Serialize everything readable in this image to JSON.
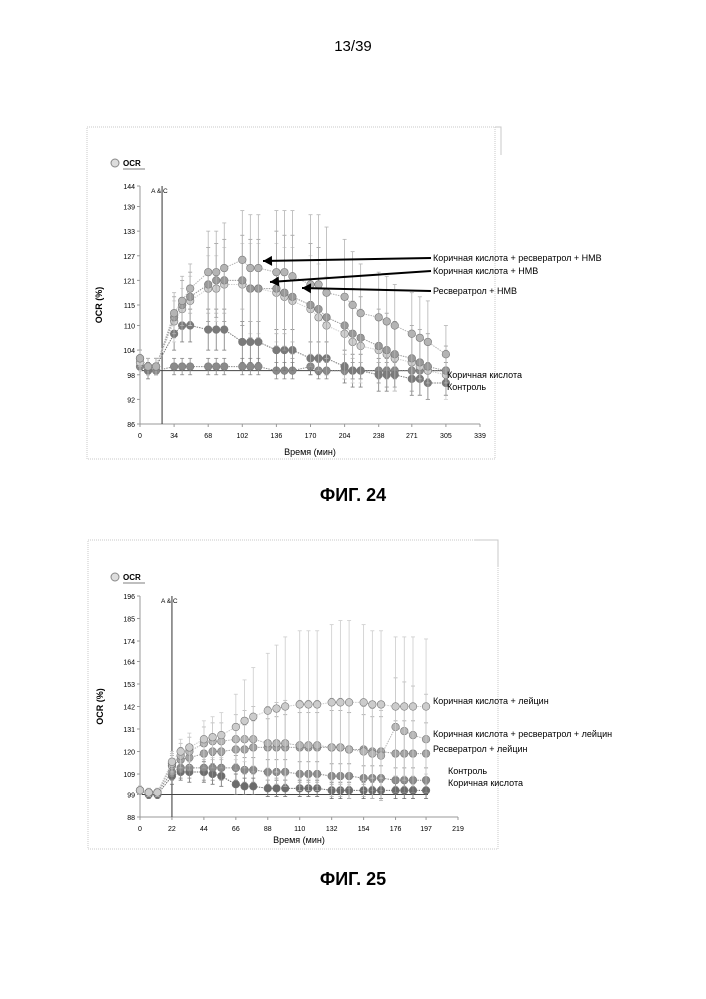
{
  "page_number": "13/39",
  "chart_data": [
    {
      "type": "line",
      "caption": "ФИГ. 24",
      "legend_label": "OCR",
      "ylabel": "OCR (%)",
      "xlabel": "Время (мин)",
      "injection_label": "A & C",
      "injection_x": 22,
      "baseline": 99,
      "xlim": [
        0,
        339
      ],
      "ylim": [
        86,
        144
      ],
      "x_ticks": [
        0,
        34,
        68,
        102,
        136,
        170,
        204,
        238,
        271,
        305,
        339
      ],
      "y_ticks": [
        86,
        92,
        98,
        104,
        110,
        115,
        121,
        127,
        133,
        139,
        144
      ],
      "x": [
        0,
        8,
        16,
        34,
        42,
        50,
        68,
        76,
        84,
        102,
        110,
        118,
        136,
        144,
        152,
        170,
        178,
        186,
        204,
        212,
        220,
        238,
        246,
        254,
        271,
        279,
        287,
        305
      ],
      "series": [
        {
          "name": "Коричная кислота + ресвератрол + HMB",
          "color": "#b4b4b4",
          "values": [
            102,
            100,
            100,
            113,
            116,
            119,
            123,
            123,
            124,
            126,
            124,
            124,
            123,
            123,
            122,
            120,
            120,
            118,
            117,
            115,
            113,
            112,
            111,
            110,
            108,
            107,
            106,
            103
          ],
          "err": [
            2,
            2,
            2,
            5,
            6,
            6,
            10,
            10,
            11,
            12,
            13,
            13,
            15,
            15,
            16,
            17,
            17,
            16,
            14,
            13,
            12,
            11,
            11,
            10,
            10,
            10,
            10,
            7
          ]
        },
        {
          "name": "Коричная кислота + HMB",
          "color": "#999999",
          "values": [
            102,
            100,
            100,
            112,
            115,
            117,
            120,
            121,
            121,
            121,
            119,
            119,
            119,
            118,
            117,
            115,
            114,
            112,
            110,
            108,
            107,
            105,
            104,
            103,
            102,
            101,
            100,
            99
          ],
          "err": [
            2,
            2,
            2,
            5,
            6,
            6,
            9,
            9,
            10,
            11,
            12,
            12,
            14,
            14,
            15,
            15,
            15,
            14,
            12,
            11,
            10,
            9,
            9,
            8,
            8,
            8,
            8,
            6
          ]
        },
        {
          "name": "Ресвератрол + HMB",
          "color": "#cfcfcf",
          "values": [
            101,
            100,
            100,
            111,
            114,
            116,
            119,
            119,
            120,
            120,
            119,
            119,
            118,
            117,
            116,
            114,
            112,
            110,
            108,
            106,
            105,
            104,
            103,
            102,
            101,
            100,
            99,
            98
          ],
          "err": [
            2,
            2,
            2,
            5,
            5,
            6,
            8,
            8,
            9,
            10,
            11,
            11,
            12,
            12,
            13,
            13,
            13,
            12,
            11,
            10,
            9,
            8,
            8,
            8,
            7,
            7,
            7,
            6
          ]
        },
        {
          "name": "Коричная кислота",
          "color": "#7a7a7a",
          "values": [
            102,
            99,
            100,
            108,
            110,
            110,
            109,
            109,
            109,
            106,
            106,
            106,
            104,
            104,
            104,
            102,
            102,
            102,
            100,
            99,
            99,
            98,
            98,
            98,
            97,
            97,
            96,
            96
          ],
          "err": [
            2,
            2,
            2,
            4,
            4,
            4,
            5,
            5,
            5,
            5,
            5,
            5,
            5,
            5,
            5,
            4,
            4,
            4,
            4,
            4,
            4,
            4,
            4,
            4,
            4,
            4,
            4,
            3
          ]
        },
        {
          "name": "Контроль",
          "color": "#8a8a8a",
          "values": [
            100,
            99,
            99,
            100,
            100,
            100,
            100,
            100,
            100,
            100,
            100,
            100,
            99,
            99,
            99,
            100,
            99,
            99,
            99,
            99,
            99,
            99,
            99,
            99,
            99,
            99,
            99,
            99
          ],
          "err": [
            1,
            1,
            1,
            2,
            2,
            2,
            2,
            2,
            2,
            2,
            2,
            2,
            2,
            2,
            2,
            2,
            2,
            2,
            2,
            2,
            2,
            2,
            2,
            2,
            2,
            2,
            2,
            2
          ]
        }
      ]
    },
    {
      "type": "line",
      "caption": "ФИГ. 25",
      "legend_label": "OCR",
      "ylabel": "OCR (%)",
      "xlabel": "Время (мин)",
      "injection_label": "A & C",
      "injection_x": 22,
      "baseline": 99,
      "xlim": [
        0,
        219
      ],
      "ylim": [
        88,
        196
      ],
      "x_ticks": [
        0,
        22,
        44,
        66,
        88,
        110,
        132,
        154,
        176,
        197,
        219
      ],
      "y_ticks": [
        88,
        99,
        109,
        120,
        131,
        142,
        153,
        164,
        174,
        185,
        196
      ],
      "x": [
        0,
        6,
        12,
        22,
        28,
        34,
        44,
        50,
        56,
        66,
        72,
        78,
        88,
        94,
        100,
        110,
        116,
        122,
        132,
        138,
        144,
        154,
        160,
        166,
        176,
        182,
        188,
        197
      ],
      "series": [
        {
          "name": "Коричная кислота + лейцин",
          "color": "#cccccc",
          "values": [
            101,
            100,
            100,
            115,
            120,
            122,
            126,
            127,
            128,
            132,
            135,
            137,
            140,
            141,
            142,
            143,
            143,
            143,
            144,
            144,
            144,
            144,
            143,
            143,
            142,
            142,
            142,
            142
          ],
          "err": [
            2,
            2,
            2,
            5,
            6,
            7,
            9,
            10,
            11,
            16,
            20,
            24,
            28,
            31,
            34,
            36,
            36,
            36,
            38,
            40,
            40,
            38,
            36,
            36,
            34,
            34,
            34,
            33
          ]
        },
        {
          "name": "Коричная кислота + ресвератрол + лейцин",
          "color": "#b6b6b6",
          "values": [
            101,
            100,
            100,
            114,
            118,
            120,
            124,
            125,
            125,
            126,
            126,
            126,
            124,
            124,
            124,
            123,
            123,
            123,
            122,
            122,
            121,
            120,
            119,
            118,
            132,
            130,
            128,
            126
          ],
          "err": [
            2,
            2,
            2,
            5,
            6,
            7,
            8,
            9,
            9,
            12,
            14,
            16,
            18,
            20,
            21,
            22,
            22,
            22,
            24,
            24,
            24,
            22,
            22,
            22,
            24,
            24,
            24,
            22
          ]
        },
        {
          "name": "Ресвератрол + лейцин",
          "color": "#a2a2a2",
          "values": [
            101,
            100,
            100,
            113,
            116,
            117,
            119,
            120,
            120,
            121,
            121,
            122,
            122,
            122,
            122,
            122,
            122,
            122,
            122,
            122,
            121,
            121,
            120,
            120,
            119,
            119,
            119,
            119
          ],
          "err": [
            2,
            2,
            2,
            5,
            6,
            6,
            7,
            8,
            8,
            10,
            12,
            13,
            14,
            15,
            16,
            17,
            17,
            17,
            18,
            18,
            18,
            17,
            17,
            17,
            16,
            16,
            16,
            15
          ]
        },
        {
          "name": "Контроль",
          "color": "#8c8c8c",
          "values": [
            101,
            100,
            100,
            110,
            112,
            112,
            112,
            112,
            112,
            112,
            111,
            111,
            110,
            110,
            110,
            109,
            109,
            109,
            108,
            108,
            108,
            107,
            107,
            107,
            106,
            106,
            106,
            106
          ],
          "err": [
            2,
            2,
            2,
            4,
            5,
            5,
            6,
            6,
            6,
            6,
            6,
            6,
            6,
            6,
            6,
            6,
            6,
            6,
            6,
            6,
            6,
            6,
            6,
            6,
            6,
            6,
            6,
            6
          ]
        },
        {
          "name": "Коричная кислота",
          "color": "#6c6c6c",
          "values": [
            101,
            99,
            99,
            108,
            110,
            110,
            110,
            109,
            108,
            104,
            103,
            103,
            102,
            102,
            102,
            102,
            102,
            102,
            101,
            101,
            101,
            101,
            101,
            101,
            101,
            101,
            101,
            101
          ],
          "err": [
            2,
            2,
            2,
            4,
            4,
            5,
            5,
            5,
            5,
            5,
            4,
            4,
            4,
            4,
            4,
            4,
            4,
            4,
            4,
            4,
            4,
            4,
            4,
            4,
            4,
            4,
            4,
            4
          ]
        }
      ]
    }
  ]
}
